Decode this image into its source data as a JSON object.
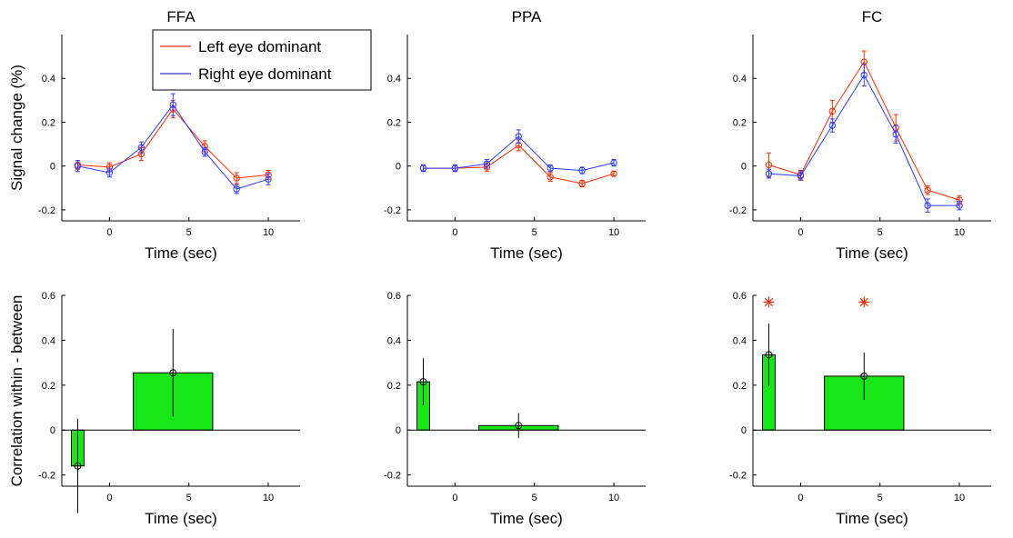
{
  "chart_data": [
    {
      "id": "ffa_signal",
      "type": "line",
      "title": "FFA",
      "xlabel": "Time (sec)",
      "ylabel": "Signal change (%)",
      "xlim": [
        -3,
        12
      ],
      "ylim": [
        -0.25,
        0.6
      ],
      "xticks": [
        0,
        5,
        10
      ],
      "yticks": [
        -0.2,
        0,
        0.2,
        0.4
      ],
      "x": [
        -2,
        0,
        2,
        4,
        6,
        8,
        10
      ],
      "series": [
        {
          "name": "Left eye dominant",
          "color": "#ff2a00",
          "values": [
            0.005,
            -0.005,
            0.055,
            0.26,
            0.09,
            -0.055,
            -0.04
          ],
          "errors": [
            0.02,
            0.02,
            0.03,
            0.04,
            0.025,
            0.025,
            0.02
          ]
        },
        {
          "name": "Right eye dominant",
          "color": "#2a3cff",
          "values": [
            0.0,
            -0.03,
            0.085,
            0.28,
            0.065,
            -0.105,
            -0.06
          ],
          "errors": [
            0.025,
            0.02,
            0.025,
            0.05,
            0.02,
            0.02,
            0.025
          ]
        }
      ],
      "legend": {
        "position": "top-right",
        "items": [
          "Left eye dominant",
          "Right eye dominant"
        ]
      }
    },
    {
      "id": "ppa_signal",
      "type": "line",
      "title": "PPA",
      "xlabel": "Time (sec)",
      "ylabel": "",
      "xlim": [
        -3,
        12
      ],
      "ylim": [
        -0.25,
        0.6
      ],
      "xticks": [
        0,
        5,
        10
      ],
      "yticks": [
        -0.2,
        0,
        0.2,
        0.4
      ],
      "x": [
        -2,
        0,
        2,
        4,
        6,
        8,
        10
      ],
      "series": [
        {
          "name": "Left eye dominant",
          "color": "#ff2a00",
          "values": [
            -0.01,
            -0.01,
            -0.005,
            0.095,
            -0.05,
            -0.08,
            -0.035
          ],
          "errors": [
            0.015,
            0.015,
            0.02,
            0.025,
            0.02,
            0.015,
            0.01
          ]
        },
        {
          "name": "Right eye dominant",
          "color": "#2a3cff",
          "values": [
            -0.01,
            -0.01,
            0.01,
            0.135,
            -0.01,
            -0.02,
            0.015
          ],
          "errors": [
            0.015,
            0.015,
            0.02,
            0.03,
            0.015,
            0.015,
            0.015
          ]
        }
      ]
    },
    {
      "id": "fc_signal",
      "type": "line",
      "title": "FC",
      "xlabel": "Time (sec)",
      "ylabel": "",
      "xlim": [
        -3,
        12
      ],
      "ylim": [
        -0.25,
        0.6
      ],
      "xticks": [
        0,
        5,
        10
      ],
      "yticks": [
        -0.2,
        0,
        0.2,
        0.4
      ],
      "x": [
        -2,
        0,
        2,
        4,
        6,
        8,
        10
      ],
      "series": [
        {
          "name": "Left eye dominant",
          "color": "#ff2a00",
          "values": [
            0.005,
            -0.04,
            0.25,
            0.475,
            0.175,
            -0.11,
            -0.155
          ],
          "errors": [
            0.055,
            0.02,
            0.05,
            0.05,
            0.06,
            0.02,
            0.02
          ]
        },
        {
          "name": "Right eye dominant",
          "color": "#2a3cff",
          "values": [
            -0.035,
            -0.045,
            0.185,
            0.415,
            0.145,
            -0.18,
            -0.18
          ],
          "errors": [
            0.02,
            0.02,
            0.03,
            0.05,
            0.04,
            0.03,
            0.02
          ]
        }
      ]
    },
    {
      "id": "ffa_corr",
      "type": "bar",
      "xlabel": "Time (sec)",
      "ylabel": "Correlation within - between",
      "xlim": [
        -3,
        12
      ],
      "ylim": [
        -0.25,
        0.6
      ],
      "xticks": [
        0,
        5,
        10
      ],
      "yticks": [
        -0.2,
        0,
        0.2,
        0.4,
        0.6
      ],
      "bar_color": "#17e617",
      "bars": [
        {
          "x": -2,
          "width": 0.8,
          "value": -0.16,
          "error": 0.21,
          "significant": false
        },
        {
          "x": 4,
          "width": 5.0,
          "value": 0.255,
          "error": 0.195,
          "significant": false
        }
      ]
    },
    {
      "id": "ppa_corr",
      "type": "bar",
      "xlabel": "Time (sec)",
      "ylabel": "",
      "xlim": [
        -3,
        12
      ],
      "ylim": [
        -0.25,
        0.6
      ],
      "xticks": [
        0,
        5,
        10
      ],
      "yticks": [
        -0.2,
        0,
        0.2,
        0.4,
        0.6
      ],
      "bar_color": "#17e617",
      "bars": [
        {
          "x": -2,
          "width": 0.8,
          "value": 0.215,
          "error": 0.105,
          "significant": false
        },
        {
          "x": 4,
          "width": 5.0,
          "value": 0.02,
          "error": 0.055,
          "significant": false
        }
      ]
    },
    {
      "id": "fc_corr",
      "type": "bar",
      "xlabel": "Time (sec)",
      "ylabel": "",
      "xlim": [
        -3,
        12
      ],
      "ylim": [
        -0.25,
        0.6
      ],
      "xticks": [
        0,
        5,
        10
      ],
      "yticks": [
        -0.2,
        0,
        0.2,
        0.4,
        0.6
      ],
      "bar_color": "#17e617",
      "marker_color": "#ff2a00",
      "bars": [
        {
          "x": -2,
          "width": 0.8,
          "value": 0.335,
          "error": 0.14,
          "significant": true
        },
        {
          "x": 4,
          "width": 5.0,
          "value": 0.24,
          "error": 0.105,
          "significant": true
        }
      ]
    }
  ]
}
